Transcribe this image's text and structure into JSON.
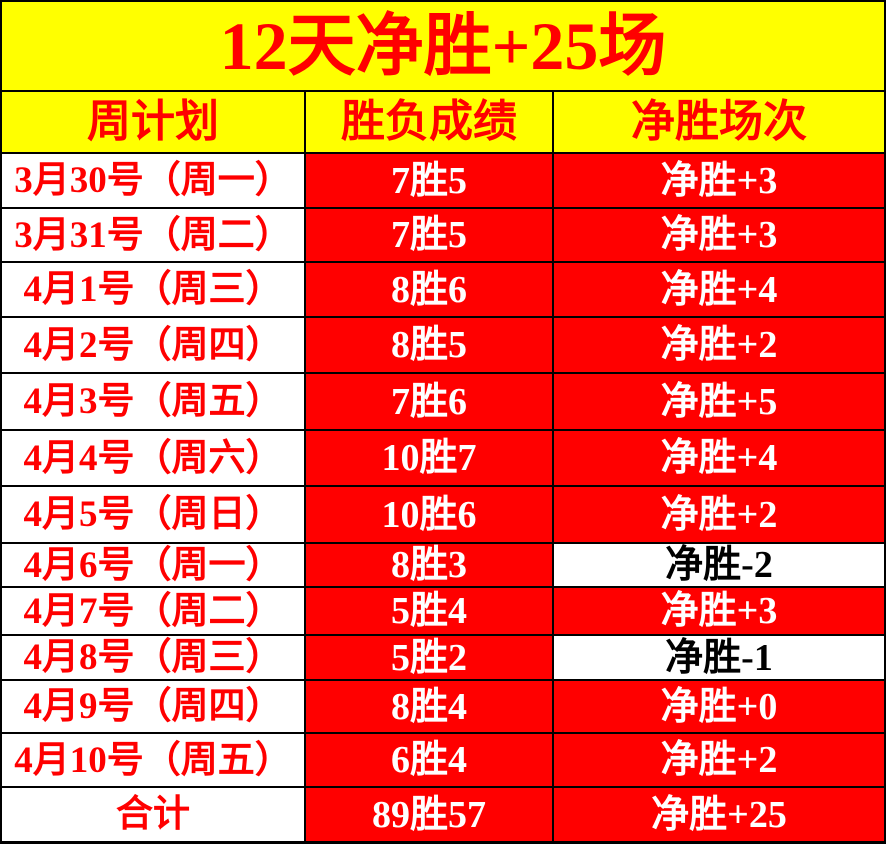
{
  "title": "12天净胜+25场",
  "chart_data": {
    "type": "table",
    "title": "12天净胜+25场",
    "columns": [
      "周计划",
      "胜负成绩",
      "净胜场次"
    ],
    "rows": [
      [
        "3月30号（周一）",
        "7胜5",
        "净胜+3"
      ],
      [
        "3月31号（周二）",
        "7胜5",
        "净胜+3"
      ],
      [
        "4月1号（周三）",
        "8胜6",
        "净胜+4"
      ],
      [
        "4月2号（周四）",
        "8胜5",
        "净胜+2"
      ],
      [
        "4月3号（周五）",
        "7胜6",
        "净胜+5"
      ],
      [
        "4月4号（周六）",
        "10胜7",
        "净胜+4"
      ],
      [
        "4月5号（周日）",
        "10胜6",
        "净胜+2"
      ],
      [
        "4月6号（周一）",
        "8胜3",
        "净胜-2"
      ],
      [
        "4月7号（周二）",
        "5胜4",
        "净胜+3"
      ],
      [
        "4月8号（周三）",
        "5胜2",
        "净胜-1"
      ],
      [
        "4月9号（周四）",
        "8胜4",
        "净胜+0"
      ],
      [
        "4月10号（周五）",
        "6胜4",
        "净胜+2"
      ]
    ],
    "total_row": [
      "合计",
      "89胜57",
      "净胜+25"
    ],
    "negative_net_row_indices": [
      7,
      9
    ],
    "colors": {
      "banner_bg": "#FFFF00",
      "banner_text": "#FF0000",
      "header_bg": "#FFFF00",
      "header_text": "#FF0000",
      "date_cell_bg": "#FFFFFF",
      "date_cell_text": "#FF0000",
      "win_cell_bg": "#FF0000",
      "win_cell_text": "#FFFFFF",
      "loss_cell_bg": "#FFFFFF",
      "loss_cell_text": "#000000",
      "grid_border": "#000000"
    }
  }
}
